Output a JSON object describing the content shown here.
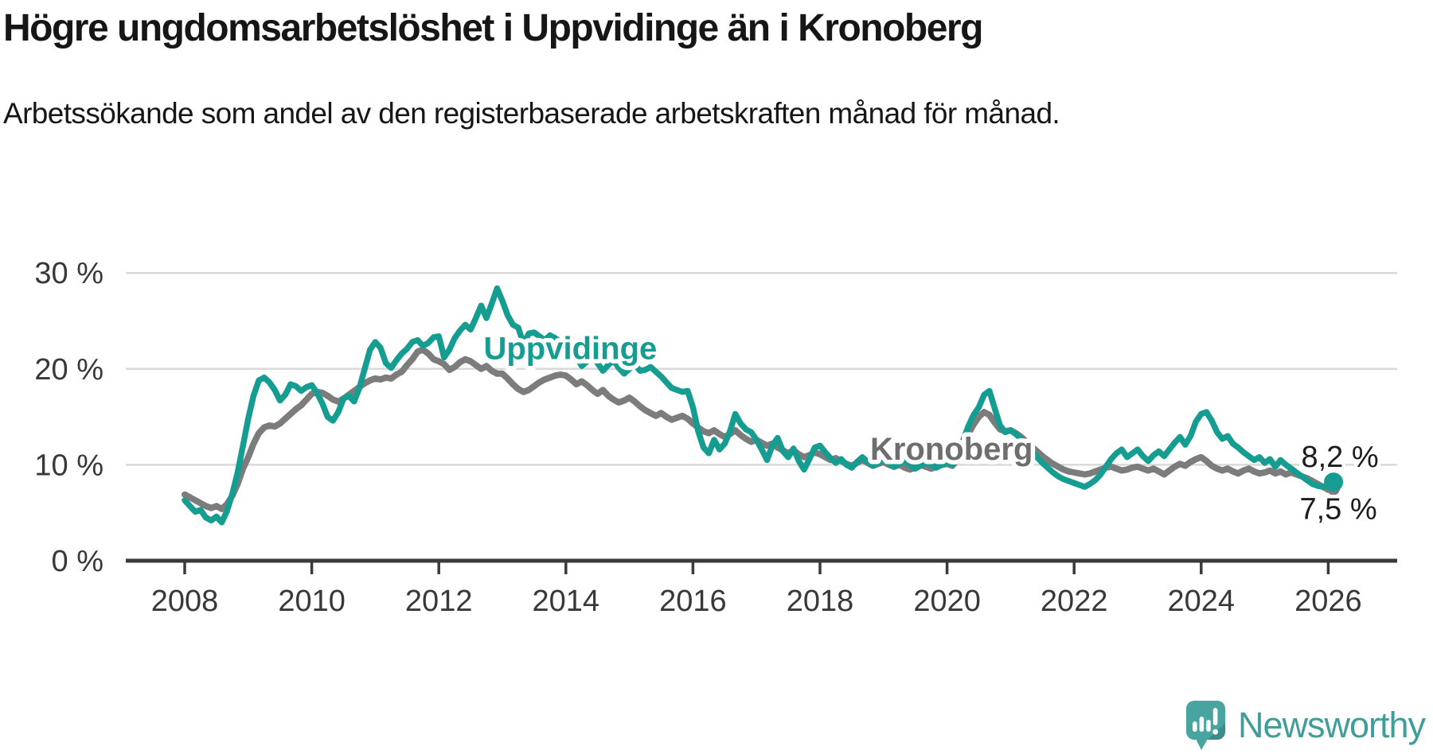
{
  "header": {
    "title": "Högre ungdomsarbetslöshet i Uppvidinge än i Kronoberg",
    "subtitle": "Arbetssökande som andel av den registerbaserade arbetskraften månad för månad."
  },
  "footer": {
    "brand": "Newsworthy"
  },
  "colors": {
    "accent_teal": "#169d92",
    "line_gray": "#7c7c7c",
    "grid": "#d9d9d9",
    "axis": "#3a3a3a",
    "tick_text": "#383838",
    "heading_text": "#161616",
    "logo_teal": "#47a49e",
    "logo_text_teal": "#3f9e98"
  },
  "chart_data": {
    "type": "line",
    "title": "Högre ungdomsarbetslöshet i Uppvidinge än i Kronoberg",
    "subtitle": "Arbetssökande som andel av den registerbaserade arbetskraften månad för månad.",
    "unit": "%",
    "frequency": "monthly",
    "x_start": "2008-01",
    "x_end": "2026-02",
    "grid": true,
    "legend": "inline-labels",
    "x_axis": {
      "ticks": [
        2008,
        2010,
        2012,
        2014,
        2016,
        2018,
        2020,
        2022,
        2024,
        2026
      ]
    },
    "y_axis": {
      "range": [
        0,
        30
      ],
      "ticks": [
        {
          "value": 0,
          "label": "0 %"
        },
        {
          "value": 10,
          "label": "10 %"
        },
        {
          "value": 20,
          "label": "20 %"
        },
        {
          "value": 30,
          "label": "30 %"
        }
      ]
    },
    "series": [
      {
        "name": "Uppvidinge",
        "color": "#169d92",
        "values": [
          6.3,
          5.7,
          5.1,
          5.3,
          4.5,
          4.2,
          4.6,
          4.0,
          5.2,
          7.0,
          9.2,
          12.0,
          14.8,
          17.2,
          18.8,
          19.1,
          18.6,
          17.8,
          16.7,
          17.3,
          18.4,
          18.2,
          17.7,
          18.1,
          18.3,
          17.5,
          16.4,
          15.0,
          14.6,
          15.5,
          16.9,
          17.2,
          16.6,
          18.0,
          20.0,
          22.0,
          22.8,
          22.2,
          20.6,
          20.1,
          20.9,
          21.6,
          22.1,
          22.8,
          23.0,
          22.4,
          22.7,
          23.3,
          23.4,
          21.2,
          22.0,
          23.2,
          24.0,
          24.6,
          24.1,
          25.3,
          26.6,
          25.3,
          26.8,
          28.4,
          27.1,
          25.6,
          24.6,
          24.3,
          22.6,
          23.7,
          23.8,
          23.4,
          23.0,
          23.5,
          23.2,
          22.8,
          23.2,
          22.4,
          21.3,
          20.3,
          20.8,
          21.4,
          20.6,
          19.8,
          20.4,
          20.9,
          20.1,
          19.5,
          20.0,
          20.5,
          19.8,
          19.9,
          20.2,
          19.7,
          19.2,
          18.6,
          18.0,
          17.8,
          17.6,
          17.7,
          16.0,
          13.5,
          11.8,
          11.2,
          12.6,
          11.6,
          12.2,
          13.5,
          15.3,
          14.3,
          13.7,
          13.4,
          12.6,
          11.6,
          10.5,
          12.0,
          12.8,
          11.4,
          10.8,
          11.7,
          10.4,
          9.5,
          10.6,
          11.8,
          12.0,
          11.3,
          10.7,
          10.2,
          10.6,
          10.0,
          9.7,
          10.3,
          10.8,
          10.3,
          9.9,
          10.2,
          10.6,
          10.2,
          9.8,
          10.1,
          10.5,
          10.0,
          9.6,
          9.9,
          10.3,
          10.0,
          9.7,
          10.0,
          10.2,
          10.0,
          10.8,
          12.5,
          14.0,
          15.2,
          16.0,
          17.3,
          17.7,
          15.9,
          14.1,
          13.4,
          13.6,
          13.2,
          12.7,
          12.1,
          11.4,
          10.8,
          10.2,
          9.7,
          9.2,
          8.8,
          8.5,
          8.3,
          8.1,
          7.9,
          7.7,
          8.0,
          8.4,
          9.0,
          9.8,
          10.6,
          11.2,
          11.6,
          10.8,
          11.2,
          11.6,
          10.9,
          10.4,
          11.0,
          11.4,
          10.9,
          11.6,
          12.3,
          12.9,
          12.1,
          13.0,
          14.5,
          15.3,
          15.5,
          14.6,
          13.4,
          12.7,
          13.0,
          12.2,
          11.8,
          11.3,
          10.9,
          10.5,
          10.8,
          10.2,
          10.6,
          9.8,
          10.5,
          10.0,
          9.6,
          9.2,
          8.8,
          8.4,
          8.0,
          7.8,
          7.7,
          7.9,
          8.2
        ]
      },
      {
        "name": "Kronoberg",
        "color": "#7c7c7c",
        "values": [
          6.9,
          6.6,
          6.3,
          6.0,
          5.7,
          5.5,
          5.7,
          5.4,
          5.9,
          6.8,
          8.0,
          9.6,
          10.8,
          12.2,
          13.3,
          13.9,
          14.1,
          14.0,
          14.3,
          14.8,
          15.3,
          15.8,
          16.2,
          16.8,
          17.4,
          17.6,
          17.5,
          17.2,
          16.8,
          16.6,
          16.9,
          17.3,
          17.7,
          18.1,
          18.5,
          18.8,
          19.0,
          18.9,
          19.1,
          19.0,
          19.4,
          19.7,
          20.4,
          21.0,
          21.8,
          22.0,
          21.6,
          21.0,
          20.8,
          20.5,
          19.9,
          20.2,
          20.7,
          21.0,
          20.8,
          20.4,
          20.0,
          20.3,
          19.8,
          19.5,
          19.5,
          19.0,
          18.4,
          17.9,
          17.6,
          17.8,
          18.2,
          18.6,
          18.9,
          19.1,
          19.3,
          19.4,
          19.3,
          18.9,
          18.4,
          18.7,
          18.3,
          17.8,
          17.4,
          17.8,
          17.2,
          16.8,
          16.5,
          16.7,
          17.0,
          16.6,
          16.1,
          15.7,
          15.4,
          15.1,
          15.4,
          15.0,
          14.7,
          14.9,
          15.1,
          14.8,
          14.3,
          13.9,
          13.5,
          13.3,
          13.6,
          13.2,
          12.9,
          13.2,
          13.6,
          13.1,
          12.7,
          12.4,
          12.6,
          12.3,
          12.0,
          12.2,
          11.8,
          11.5,
          11.2,
          11.5,
          11.1,
          10.8,
          11.0,
          11.3,
          11.1,
          10.8,
          10.5,
          10.7,
          10.4,
          10.1,
          9.9,
          10.2,
          10.5,
          10.2,
          9.9,
          10.1,
          10.3,
          10.0,
          9.8,
          10.0,
          9.7,
          9.5,
          9.7,
          10.0,
          9.8,
          9.6,
          9.8,
          10.0,
          10.1,
          9.9,
          10.6,
          12.0,
          13.2,
          14.2,
          15.0,
          15.5,
          15.2,
          14.4,
          13.7,
          13.5,
          13.6,
          13.3,
          12.9,
          12.4,
          11.9,
          11.4,
          10.9,
          10.5,
          10.1,
          9.8,
          9.5,
          9.3,
          9.2,
          9.1,
          9.0,
          9.1,
          9.3,
          9.5,
          9.7,
          9.8,
          9.6,
          9.4,
          9.5,
          9.7,
          9.8,
          9.6,
          9.4,
          9.6,
          9.3,
          9.0,
          9.4,
          9.8,
          10.1,
          9.9,
          10.3,
          10.6,
          10.8,
          10.4,
          9.9,
          9.6,
          9.4,
          9.6,
          9.3,
          9.1,
          9.4,
          9.6,
          9.3,
          9.1,
          9.2,
          9.4,
          9.1,
          9.3,
          9.0,
          9.2,
          9.0,
          8.8,
          8.6,
          8.3,
          8.0,
          7.7,
          7.4,
          7.5
        ]
      }
    ],
    "annotations": [
      {
        "text": "Uppvidinge",
        "year": 2014.07,
        "pct": 22.2,
        "color": "#169d92"
      },
      {
        "text": "Kronoberg",
        "year": 2020.07,
        "pct": 11.7,
        "color": "#6e6e6e"
      }
    ],
    "end_labels": [
      {
        "series": "Uppvidinge",
        "text": "8,2 %",
        "value": 8.2
      },
      {
        "series": "Kronoberg",
        "text": "7,5 %",
        "value": 7.5
      }
    ]
  }
}
